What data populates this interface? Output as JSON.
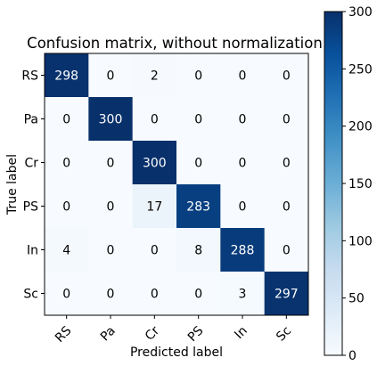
{
  "chart_data": {
    "type": "heatmap",
    "title": "Confusion matrix, without normalization",
    "xlabel": "Predicted label",
    "ylabel": "True label",
    "x_categories": [
      "RS",
      "Pa",
      "Cr",
      "PS",
      "In",
      "Sc"
    ],
    "y_categories": [
      "RS",
      "Pa",
      "Cr",
      "PS",
      "In",
      "Sc"
    ],
    "values": [
      [
        298,
        0,
        2,
        0,
        0,
        0
      ],
      [
        0,
        300,
        0,
        0,
        0,
        0
      ],
      [
        0,
        0,
        300,
        0,
        0,
        0
      ],
      [
        0,
        0,
        17,
        283,
        0,
        0
      ],
      [
        4,
        0,
        0,
        8,
        288,
        0
      ],
      [
        0,
        0,
        0,
        0,
        3,
        297
      ]
    ],
    "colormap": "Blues",
    "colorbar": {
      "range": [
        0,
        300
      ],
      "ticks": [
        0,
        50,
        100,
        150,
        200,
        250,
        300
      ]
    },
    "x_tick_rotation": "45 degrees",
    "colors": {
      "low": "#f7fbff",
      "high": "#08306b",
      "text_dark_bg": "#ffffff",
      "text_light_bg": "#000000"
    }
  }
}
